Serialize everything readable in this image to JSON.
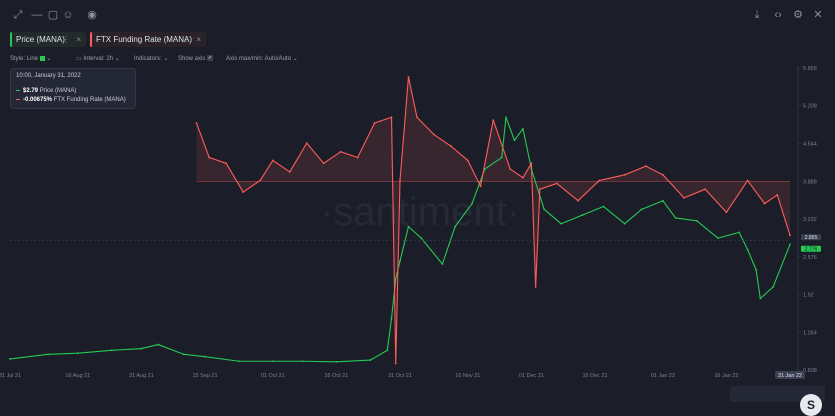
{
  "toolbar": {
    "left_icons": [
      "expand-icon",
      "minus-icon",
      "note-icon",
      "emoji-icon",
      "eye-icon"
    ],
    "right_icons": [
      "download-icon",
      "embed-code-icon",
      "settings-icon",
      "close-icon"
    ]
  },
  "tabs": [
    {
      "label": "Price (MANA)",
      "color": "#26c953"
    },
    {
      "label": "FTX Funding Rate (MANA)",
      "color": "#ff5b5b"
    }
  ],
  "options": {
    "style_label": "Style: Line",
    "interval_label": "Interval: 2h",
    "indicators_label": "Indicators:",
    "show_axis_label": "Show axis",
    "axis_label": "Axis max/min: Auto/Auto"
  },
  "tooltip": {
    "date": "10:00, January 31, 2022",
    "price_value": "$2.79",
    "price_name": "Price (MANA)",
    "funding_value": "-0.00675%",
    "funding_name": "FTX Funding Rate (MANA)"
  },
  "watermark": "·santiment·",
  "chart_data": {
    "type": "line",
    "x_ticks": [
      "31 Jul 21",
      "16 Aug 21",
      "31 Aug 21",
      "15 Sep 21",
      "01 Oct 21",
      "16 Oct 21",
      "31 Oct 21",
      "16 Nov 21",
      "01 Dec 21",
      "16 Dec 21",
      "01 Jan 22",
      "16 Jan 22",
      "31 Jan 22"
    ],
    "y_ticks": [
      "5.856",
      "5.208",
      "4.544",
      "3.888",
      "3.232",
      "2.576",
      "1.92",
      "1.264",
      "0.608"
    ],
    "ylim": [
      0.608,
      5.856
    ],
    "current_labels": [
      "2.855",
      "2.776"
    ],
    "series": [
      {
        "name": "Price (MANA)",
        "color": "#26c953",
        "points": [
          [
            "31 Jul 21",
            0.8
          ],
          [
            "09 Aug 21",
            0.88
          ],
          [
            "16 Aug 21",
            0.9
          ],
          [
            "24 Aug 21",
            0.95
          ],
          [
            "31 Aug 21",
            0.98
          ],
          [
            "04 Sep 21",
            1.05
          ],
          [
            "10 Sep 21",
            0.88
          ],
          [
            "15 Sep 21",
            0.84
          ],
          [
            "23 Sep 21",
            0.76
          ],
          [
            "01 Oct 21",
            0.76
          ],
          [
            "08 Oct 21",
            0.76
          ],
          [
            "16 Oct 21",
            0.75
          ],
          [
            "24 Oct 21",
            0.78
          ],
          [
            "28 Oct 21",
            0.95
          ],
          [
            "29 Oct 21",
            1.5
          ],
          [
            "30 Oct 21",
            2.2
          ],
          [
            "31 Oct 21",
            2.5
          ],
          [
            "02 Nov 21",
            3.1
          ],
          [
            "05 Nov 21",
            2.9
          ],
          [
            "10 Nov 21",
            2.45
          ],
          [
            "13 Nov 21",
            3.1
          ],
          [
            "17 Nov 21",
            3.5
          ],
          [
            "20 Nov 21",
            4.1
          ],
          [
            "24 Nov 21",
            4.3
          ],
          [
            "25 Nov 21",
            5.0
          ],
          [
            "27 Nov 21",
            4.6
          ],
          [
            "29 Nov 21",
            4.8
          ],
          [
            "01 Dec 21",
            4.1
          ],
          [
            "04 Dec 21",
            3.4
          ],
          [
            "08 Dec 21",
            3.15
          ],
          [
            "13 Dec 21",
            3.3
          ],
          [
            "18 Dec 21",
            3.45
          ],
          [
            "23 Dec 21",
            3.15
          ],
          [
            "27 Dec 21",
            3.4
          ],
          [
            "01 Jan 22",
            3.55
          ],
          [
            "04 Jan 22",
            3.25
          ],
          [
            "09 Jan 22",
            3.2
          ],
          [
            "14 Jan 22",
            2.9
          ],
          [
            "19 Jan 22",
            3.0
          ],
          [
            "21 Jan 22",
            2.7
          ],
          [
            "23 Jan 22",
            2.35
          ],
          [
            "24 Jan 22",
            1.85
          ],
          [
            "27 Jan 22",
            2.05
          ],
          [
            "31 Jan 22",
            2.79
          ]
        ]
      },
      {
        "name": "FTX Funding Rate (MANA)",
        "color": "#ff5b5b",
        "points": [
          [
            "13 Sep 21",
            4.9
          ],
          [
            "16 Sep 21",
            4.3
          ],
          [
            "20 Sep 21",
            4.2
          ],
          [
            "24 Sep 21",
            3.7
          ],
          [
            "28 Sep 21",
            3.9
          ],
          [
            "01 Oct 21",
            4.25
          ],
          [
            "05 Oct 21",
            4.05
          ],
          [
            "09 Oct 21",
            4.55
          ],
          [
            "13 Oct 21",
            4.2
          ],
          [
            "17 Oct 21",
            4.4
          ],
          [
            "21 Oct 21",
            4.3
          ],
          [
            "25 Oct 21",
            4.9
          ],
          [
            "29 Oct 21",
            5.0
          ],
          [
            "30 Oct 21",
            0.72
          ],
          [
            "31 Oct 21",
            3.9
          ],
          [
            "02 Nov 21",
            5.7
          ],
          [
            "04 Nov 21",
            5.0
          ],
          [
            "08 Nov 21",
            4.7
          ],
          [
            "12 Nov 21",
            4.5
          ],
          [
            "16 Nov 21",
            4.25
          ],
          [
            "19 Nov 21",
            3.8
          ],
          [
            "22 Nov 21",
            4.95
          ],
          [
            "26 Nov 21",
            4.1
          ],
          [
            "29 Nov 21",
            3.95
          ],
          [
            "01 Dec 21",
            4.2
          ],
          [
            "02 Dec 21",
            2.05
          ],
          [
            "03 Dec 21",
            3.75
          ],
          [
            "07 Dec 21",
            3.85
          ],
          [
            "12 Dec 21",
            3.55
          ],
          [
            "17 Dec 21",
            3.9
          ],
          [
            "23 Dec 21",
            4.0
          ],
          [
            "28 Dec 21",
            4.15
          ],
          [
            "01 Jan 22",
            4.0
          ],
          [
            "06 Jan 22",
            3.6
          ],
          [
            "11 Jan 22",
            3.75
          ],
          [
            "16 Jan 22",
            3.35
          ],
          [
            "21 Jan 22",
            3.9
          ],
          [
            "25 Jan 22",
            3.5
          ],
          [
            "28 Jan 22",
            3.65
          ],
          [
            "31 Jan 22",
            2.95
          ]
        ],
        "baseline": 3.888
      }
    ]
  }
}
